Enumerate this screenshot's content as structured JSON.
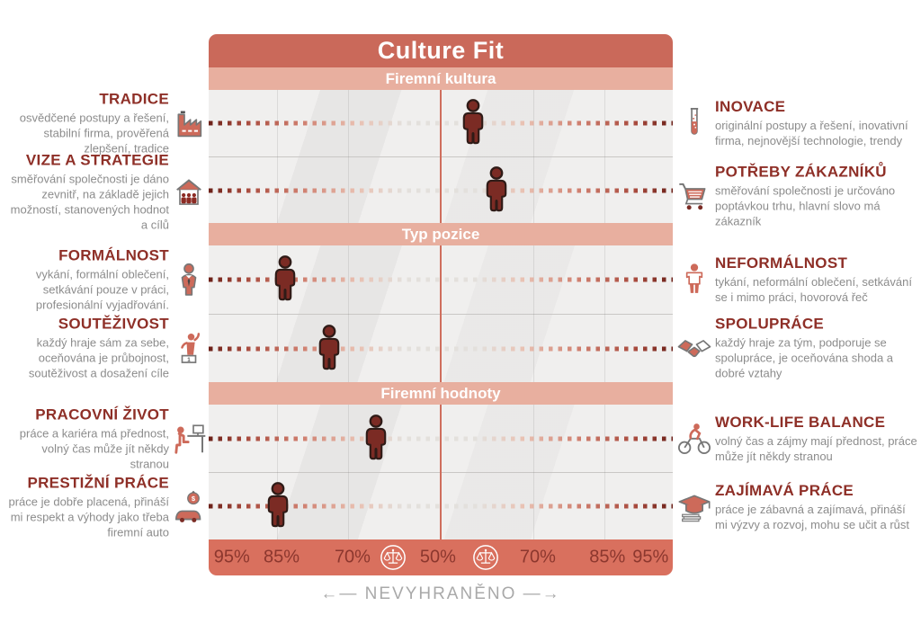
{
  "title": "Culture Fit",
  "sections": [
    {
      "header": "Firemní kultura"
    },
    {
      "header": "Typ pozice"
    },
    {
      "header": "Firemní hodnoty"
    }
  ],
  "rows": [
    {
      "left": {
        "title": "TRADICE",
        "description": "osvědčené postupy a řešení, stabilní firma, prověřená zlepšení, tradice",
        "icon": "factory-icon"
      },
      "right": {
        "title": "INOVACE",
        "description": "originální postupy a řešení, inovativní firma, nejnovější technologie, trendy",
        "icon": "test-tube-icon"
      }
    },
    {
      "left": {
        "title": "VIZE A STRATEGIE",
        "description": "směřování společnosti je dáno zevnitř, na základě jejich možností, stanovených hodnot a cílů",
        "icon": "company-house-icon"
      },
      "right": {
        "title": "POTŘEBY ZÁKAZNÍKŮ",
        "description": "směřování společnosti je určováno poptávkou trhu, hlavní slovo má zákazník",
        "icon": "shopping-cart-icon"
      }
    },
    {
      "left": {
        "title": "FORMÁLNOST",
        "description": "vykání, formální oblečení, setkávání pouze v práci, profesionální vyjadřování.",
        "icon": "formal-person-icon"
      },
      "right": {
        "title": "NEFORMÁLNOST",
        "description": "tykání, neformální oblečení, setkávání se i mimo práci, hovorová řeč",
        "icon": "casual-person-icon"
      }
    },
    {
      "left": {
        "title": "SOUTĚŽIVOST",
        "description": "každý hraje sám za sebe, oceňována je průbojnost, soutěživost a dosažení cíle",
        "icon": "winner-podium-icon"
      },
      "right": {
        "title": "SPOLUPRÁCE",
        "description": "každý hraje za tým, podporuje se spolupráce, je oceňována shoda a dobré vztahy",
        "icon": "handshake-icon"
      }
    },
    {
      "left": {
        "title": "PRACOVNÍ ŽIVOT",
        "description": "práce a kariéra má přednost, volný čas může jít někdy stranou",
        "icon": "desk-work-icon"
      },
      "right": {
        "title": "WORK-LIFE BALANCE",
        "description": "volný čas a zájmy mají přednost, práce může jít někdy stranou",
        "icon": "cyclist-icon"
      }
    },
    {
      "left": {
        "title": "PRESTIŽNÍ PRÁCE",
        "description": "práce je dobře placená, přináší mi respekt a výhody jako třeba firemní auto",
        "icon": "car-money-icon"
      },
      "right": {
        "title": "ZAJÍMAVÁ PRÁCE",
        "description": "práce je zábavná a zajímavá, přináší mi výzvy a rozvoj, mohu se učit a růst",
        "icon": "graduation-cap-icon"
      }
    }
  ],
  "markers": [
    57,
    62,
    16.5,
    26,
    36,
    15
  ],
  "axis": {
    "ticks": [
      "95%",
      "85%",
      "70%",
      "50%",
      "70%",
      "85%",
      "95%"
    ],
    "arrow_left": "←—",
    "footer": "NEVYHRANĚNO",
    "arrow_right": "—→"
  },
  "colors": {
    "primary_bar": "#ca695a",
    "section_header": "#e8af9f",
    "axis_bar": "#d9705e",
    "axis_text": "#8c372e",
    "heading_text": "#8e2f27",
    "description_text": "#8c8c8c",
    "person_fill": "#7b2b24",
    "center_line": "#cf6e5d",
    "footer_text": "#a9a9a9"
  },
  "chart_data": {
    "type": "scatter",
    "title": "Culture Fit",
    "description": "Bipolar culture-fit profile: one person marker per dimension on a mirrored 95–85–70–50–70–85–95 % scale; 50 % centre = NEVYHRANĚNO (undecided).",
    "axis_ticks": [
      "95%",
      "85%",
      "70%",
      "50%",
      "70%",
      "85%",
      "95%"
    ],
    "groups": [
      "Firemní kultura",
      "Firemní kultura",
      "Typ pozice",
      "Typ pozice",
      "Firemní hodnoty",
      "Firemní hodnoty"
    ],
    "rows": [
      {
        "left_pole": "TRADICE",
        "right_pole": "INOVACE",
        "side": "right",
        "value_pct": 58
      },
      {
        "left_pole": "VIZE A STRATEGIE",
        "right_pole": "POTŘEBY ZÁKAZNÍKŮ",
        "side": "right",
        "value_pct": 63
      },
      {
        "left_pole": "FORMÁLNOST",
        "right_pole": "NEFORMÁLNOST",
        "side": "left",
        "value_pct": 85
      },
      {
        "left_pole": "SOUTĚŽIVOST",
        "right_pole": "SPOLUPRÁCE",
        "side": "left",
        "value_pct": 75
      },
      {
        "left_pole": "PRACOVNÍ ŽIVOT",
        "right_pole": "WORK-LIFE BALANCE",
        "side": "left",
        "value_pct": 65
      },
      {
        "left_pole": "PRESTIŽNÍ PRÁCE",
        "right_pole": "ZAJÍMAVÁ PRÁCE",
        "side": "left",
        "value_pct": 86
      }
    ]
  }
}
